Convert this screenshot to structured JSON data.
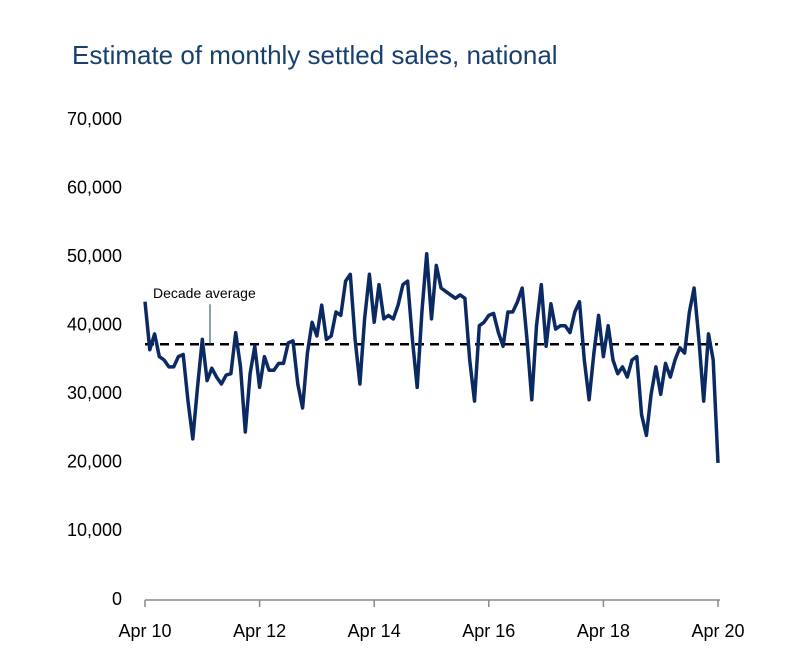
{
  "chart_data": {
    "type": "line",
    "title": "Estimate of monthly settled sales, national",
    "categories": [
      "Apr 10",
      null,
      null,
      null,
      null,
      null,
      null,
      null,
      null,
      null,
      null,
      null,
      null,
      null,
      null,
      null,
      null,
      null,
      null,
      null,
      null,
      null,
      null,
      null,
      "Apr 12",
      null,
      null,
      null,
      null,
      null,
      null,
      null,
      null,
      null,
      null,
      null,
      null,
      null,
      null,
      null,
      null,
      null,
      null,
      null,
      null,
      null,
      null,
      null,
      "Apr 14",
      null,
      null,
      null,
      null,
      null,
      null,
      null,
      null,
      null,
      null,
      null,
      null,
      null,
      null,
      null,
      null,
      null,
      null,
      null,
      null,
      null,
      null,
      null,
      "Apr 16",
      null,
      null,
      null,
      null,
      null,
      null,
      null,
      null,
      null,
      null,
      null,
      null,
      null,
      null,
      null,
      null,
      null,
      null,
      null,
      null,
      null,
      null,
      null,
      "Apr 18",
      null,
      null,
      null,
      null,
      null,
      null,
      null,
      null,
      null,
      null,
      null,
      null,
      null,
      null,
      null,
      null,
      null,
      null,
      null,
      null,
      null,
      null,
      null,
      "Apr 20"
    ],
    "series": [
      {
        "color": "#0b2a63",
        "values": [
          43500,
          36500,
          38800,
          35500,
          35000,
          34000,
          34000,
          35500,
          35800,
          29000,
          23500,
          31000,
          38000,
          32000,
          33800,
          32500,
          31500,
          32800,
          33000,
          39000,
          34000,
          24500,
          33000,
          37000,
          31000,
          35500,
          33500,
          33500,
          34500,
          34500,
          37500,
          37800,
          31500,
          28000,
          36000,
          40500,
          38500,
          43000,
          38000,
          38500,
          42000,
          41500,
          46500,
          47500,
          38000,
          31500,
          41000,
          47500,
          40500,
          46000,
          41000,
          41500,
          41000,
          43000,
          46000,
          46500,
          38000,
          31000,
          42000,
          50500,
          41000,
          48800,
          45500,
          45000,
          44500,
          44000,
          44500,
          44000,
          35000,
          29000,
          40000,
          40500,
          41500,
          41800,
          39000,
          37000,
          42000,
          42000,
          43500,
          45500,
          38000,
          29200,
          40000,
          46000,
          37000,
          43200,
          39500,
          40000,
          40000,
          39000,
          42000,
          43500,
          35000,
          29200,
          36000,
          41500,
          35500,
          40000,
          35000,
          33000,
          34000,
          32500,
          35000,
          35500,
          27000,
          24000,
          30000,
          34000,
          30000,
          34500,
          32500,
          35000,
          36800,
          36000,
          42000,
          45500,
          38000,
          29000,
          38800,
          35000,
          20000
        ]
      }
    ],
    "reference_line": {
      "label": "Decade average",
      "value": 37300,
      "color": "#000000"
    },
    "ylim": [
      0,
      70000
    ],
    "yticks": [
      0,
      {
        "value": 10000,
        "label": "10,000"
      },
      {
        "value": 20000,
        "label": "20,000"
      },
      {
        "value": 30000,
        "label": "30,000"
      },
      {
        "value": 40000,
        "label": "40,000"
      },
      {
        "value": 50000,
        "label": "50,000"
      },
      {
        "value": 60000,
        "label": "60,000"
      },
      {
        "value": 70000,
        "label": "70,000"
      }
    ],
    "grid": false
  }
}
